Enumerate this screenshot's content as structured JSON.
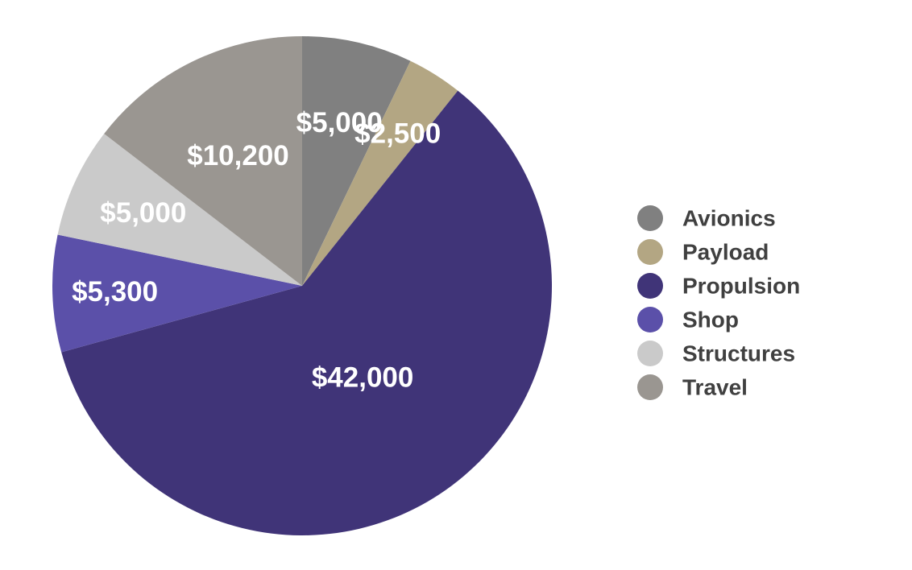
{
  "chart_data": {
    "type": "pie",
    "title": "",
    "legend_position": "right",
    "slices": [
      {
        "name": "Avionics",
        "value": 5000,
        "label": "$5,000",
        "color": "#808080"
      },
      {
        "name": "Payload",
        "value": 2500,
        "label": "$2,500",
        "color": "#b3a683"
      },
      {
        "name": "Propulsion",
        "value": 42000,
        "label": "$42,000",
        "color": "#403478"
      },
      {
        "name": "Shop",
        "value": 5300,
        "label": "$5,300",
        "color": "#5b50a9"
      },
      {
        "name": "Structures",
        "value": 5000,
        "label": "$5,000",
        "color": "#cacaca"
      },
      {
        "name": "Travel",
        "value": 10200,
        "label": "$10,200",
        "color": "#9a9691"
      }
    ]
  }
}
